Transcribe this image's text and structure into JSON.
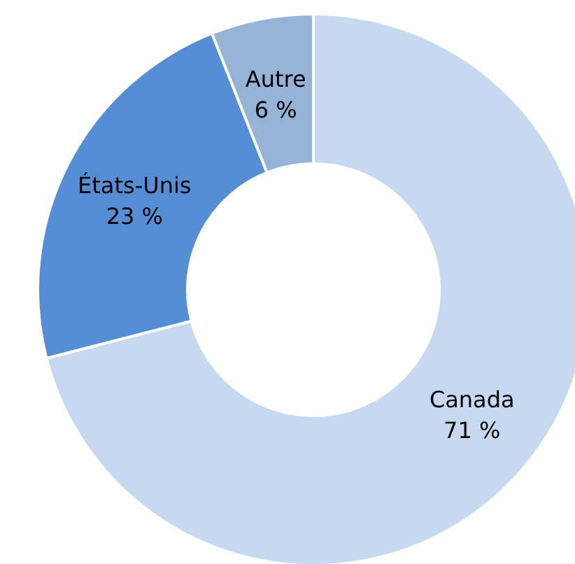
{
  "chart_data": {
    "type": "donut",
    "categories": [
      "Canada",
      "États-Unis",
      "Autre"
    ],
    "values": [
      71,
      23,
      6
    ],
    "colors": [
      "#c6d9f1",
      "#558ed5",
      "#95b3d7"
    ],
    "value_labels": [
      "71 %",
      "23 %",
      "6 %"
    ]
  }
}
